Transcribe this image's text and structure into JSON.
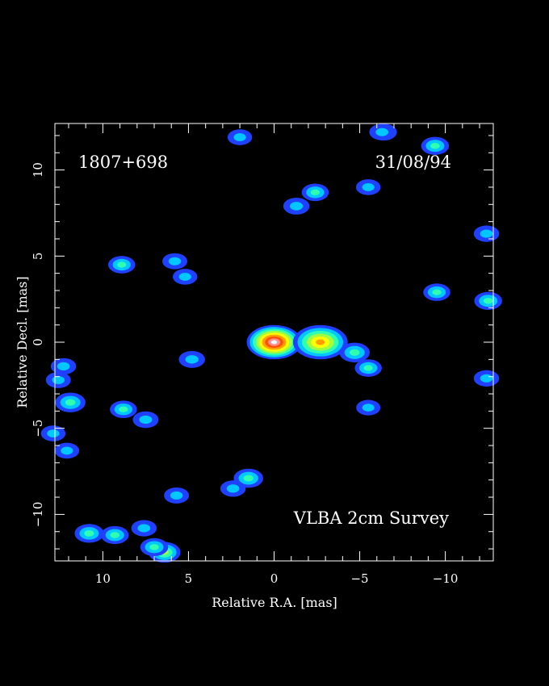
{
  "chart_data": {
    "type": "heatmap",
    "source_name": "1807+698",
    "date": "31/08/94",
    "survey": "VLBA 2cm Survey",
    "xlabel": "Relative R.A. [mas]",
    "ylabel": "Relative Decl. [mas]",
    "xlim": [
      12.8,
      -12.8
    ],
    "ylim": [
      -12.7,
      12.7
    ],
    "x_ticks": [
      10,
      5,
      0,
      -5,
      -10
    ],
    "y_ticks": [
      10,
      5,
      0,
      -5,
      -10
    ],
    "x_tick_labels": [
      "10",
      "5",
      "0",
      "−5",
      "−10"
    ],
    "y_tick_labels": [
      "10",
      "5",
      "0",
      "−5",
      "−10"
    ],
    "colormap": [
      "#2040ff",
      "#00c8ff",
      "#30ffb0",
      "#a0ff40",
      "#ffff00",
      "#ffa000",
      "#ff5000",
      "#ff9090",
      "#ffffff"
    ],
    "components": [
      {
        "x": 0.0,
        "y": 0.0,
        "intensity": 1.0
      },
      {
        "x": -2.7,
        "y": 0.0,
        "intensity": 0.62
      },
      {
        "x": -4.7,
        "y": -0.6,
        "intensity": 0.28
      },
      {
        "x": -5.5,
        "y": -1.5,
        "intensity": 0.2
      },
      {
        "x": 8.9,
        "y": 4.5,
        "intensity": 0.2
      },
      {
        "x": -9.5,
        "y": 2.9,
        "intensity": 0.2
      },
      {
        "x": -9.4,
        "y": 11.4,
        "intensity": 0.22
      },
      {
        "x": -2.4,
        "y": 8.7,
        "intensity": 0.2
      },
      {
        "x": -1.3,
        "y": 7.9,
        "intensity": 0.18
      },
      {
        "x": -6.4,
        "y": 12.2,
        "intensity": 0.18
      },
      {
        "x": 11.9,
        "y": -3.5,
        "intensity": 0.28
      },
      {
        "x": 8.8,
        "y": -3.9,
        "intensity": 0.2
      },
      {
        "x": 7.5,
        "y": -4.5,
        "intensity": 0.17
      },
      {
        "x": 4.8,
        "y": -1.0,
        "intensity": 0.18
      },
      {
        "x": 10.8,
        "y": -11.1,
        "intensity": 0.25
      },
      {
        "x": 9.3,
        "y": -11.2,
        "intensity": 0.22
      },
      {
        "x": 7.6,
        "y": -10.8,
        "intensity": 0.16
      },
      {
        "x": 6.4,
        "y": -12.2,
        "intensity": 0.32
      },
      {
        "x": 7.0,
        "y": -11.9,
        "intensity": 0.22
      },
      {
        "x": 1.5,
        "y": -7.9,
        "intensity": 0.26
      },
      {
        "x": 2.4,
        "y": -8.5,
        "intensity": 0.16
      },
      {
        "x": 5.7,
        "y": -8.9,
        "intensity": 0.15
      },
      {
        "x": -12.5,
        "y": 2.4,
        "intensity": 0.22
      },
      {
        "x": -12.4,
        "y": 6.3,
        "intensity": 0.16
      },
      {
        "x": -12.4,
        "y": -2.1,
        "intensity": 0.16
      },
      {
        "x": 12.3,
        "y": -1.4,
        "intensity": 0.16
      },
      {
        "x": 12.6,
        "y": -2.2,
        "intensity": 0.15
      },
      {
        "x": 12.9,
        "y": -5.3,
        "intensity": 0.14
      },
      {
        "x": 12.1,
        "y": -6.3,
        "intensity": 0.14
      },
      {
        "x": 5.8,
        "y": 4.7,
        "intensity": 0.15
      },
      {
        "x": 5.2,
        "y": 3.8,
        "intensity": 0.14
      },
      {
        "x": -6.3,
        "y": 12.2,
        "intensity": 0.16
      },
      {
        "x": 2.0,
        "y": 11.9,
        "intensity": 0.14
      },
      {
        "x": -5.5,
        "y": 9.0,
        "intensity": 0.14
      },
      {
        "x": -5.5,
        "y": -3.8,
        "intensity": 0.13
      }
    ]
  }
}
